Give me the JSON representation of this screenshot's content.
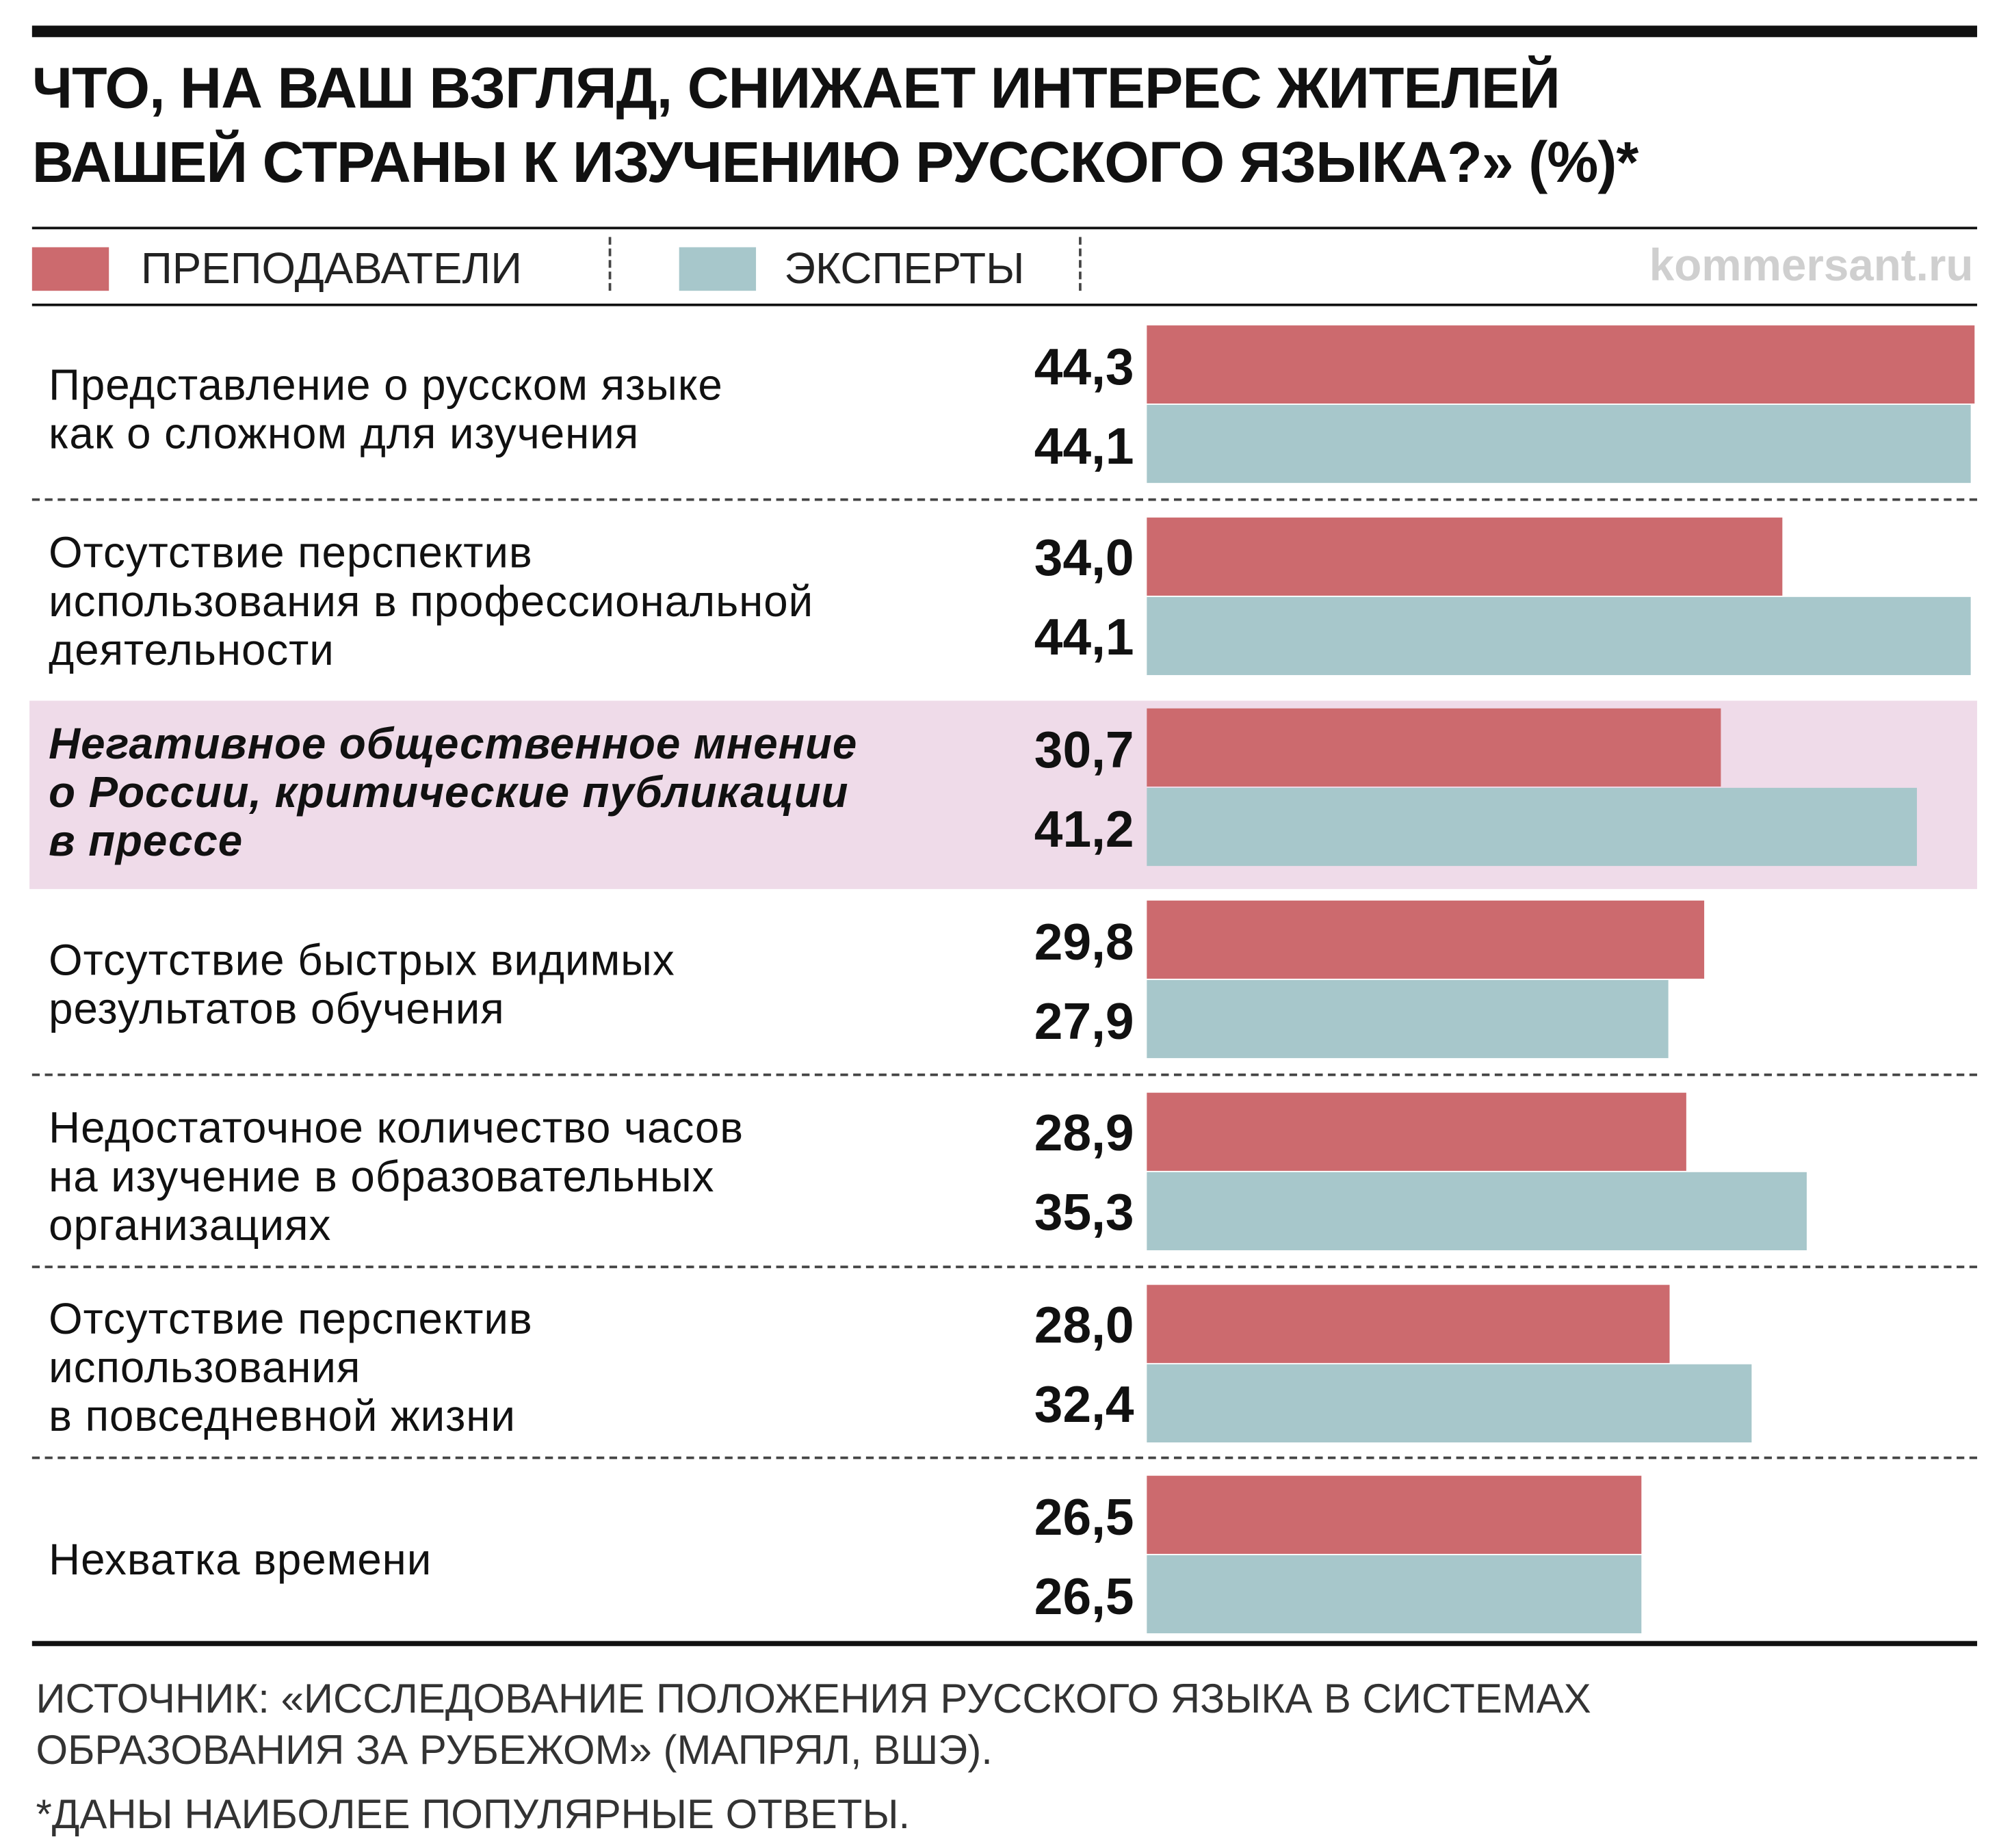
{
  "chart_data": {
    "type": "bar",
    "orientation": "horizontal",
    "title": "ЧТО, НА ВАШ ВЗГЛЯД, СНИЖАЕТ ИНТЕРЕС ЖИТЕЛЕЙ\nВАШЕЙ СТРАНЫ К ИЗУЧЕНИЮ РУССКОГО ЯЗЫКА?» (%)*",
    "watermark": "kommersant.ru",
    "categories": [
      "Представление о русском языке\nкак о сложном для изучения",
      "Отсутствие перспектив\nиспользования в профессиональной\nдеятельности",
      "Негативное общественное мнение\nо России, критические публикации\nв прессе",
      "Отсутствие быстрых видимых\nрезультатов обучения",
      "Недостаточное количество часов\nна изучение в образовательных\nорганизациях",
      "Отсутствие перспектив\nиспользования\nв повседневной жизни",
      "Нехватка времени"
    ],
    "series": [
      {
        "name": "ПРЕПОДАВАТЕЛИ",
        "color": "#cc6a6e",
        "values": [
          44.3,
          34.0,
          30.7,
          29.8,
          28.9,
          28.0,
          26.5
        ],
        "value_labels": [
          "44,3",
          "34,0",
          "30,7",
          "29,8",
          "28,9",
          "28,0",
          "26,5"
        ]
      },
      {
        "name": "ЭКСПЕРТЫ",
        "color": "#a7c7cb",
        "values": [
          44.1,
          44.1,
          41.2,
          27.9,
          35.3,
          32.4,
          26.5
        ],
        "value_labels": [
          "44,1",
          "44,1",
          "41,2",
          "27,9",
          "35,3",
          "32,4",
          "26,5"
        ]
      }
    ],
    "xlim": [
      0,
      44.3
    ],
    "highlight": 2,
    "highlight_color": "#efdbe9",
    "legend": "top",
    "source": "ИСТОЧНИК: «ИССЛЕДОВАНИЕ ПОЛОЖЕНИЯ РУССКОГО ЯЗЫКА В СИСТЕМАХ\nОБРАЗОВАНИЯ ЗА РУБЕЖОМ» (МАПРЯЛ, ВШЭ).",
    "note": "*ДАНЫ НАИБОЛЕЕ ПОПУЛЯРНЫЕ ОТВЕТЫ."
  }
}
